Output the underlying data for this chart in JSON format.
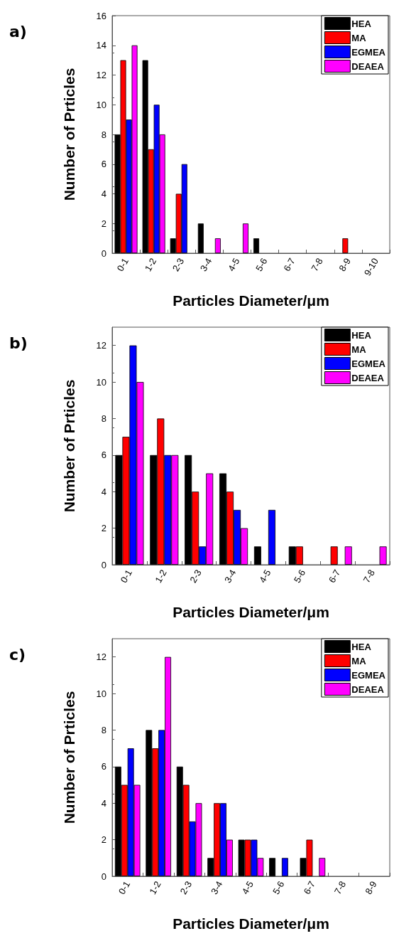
{
  "chart_data": [
    {
      "type": "bar",
      "title": "a)",
      "xlabel": "Particles Diameter/μm",
      "ylabel": "Number of Prticles",
      "categories": [
        "0-1",
        "1-2",
        "2-3",
        "3-4",
        "4-5",
        "5-6",
        "6-7",
        "7-8",
        "8-9",
        "9-10"
      ],
      "ylim": [
        0,
        16
      ],
      "yticks": [
        0,
        2,
        4,
        6,
        8,
        10,
        12,
        14,
        16
      ],
      "grid": false,
      "legend": "top right",
      "series": [
        {
          "name": "HEA",
          "color": "#000000",
          "values": [
            8,
            13,
            1,
            2,
            0,
            1,
            0,
            0,
            0,
            0
          ]
        },
        {
          "name": "MA",
          "color": "#ff0000",
          "values": [
            13,
            7,
            4,
            0,
            0,
            0,
            0,
            0,
            1,
            0
          ]
        },
        {
          "name": "EGMEA",
          "color": "#0000ff",
          "values": [
            9,
            10,
            6,
            0,
            0,
            0,
            0,
            0,
            0,
            0
          ]
        },
        {
          "name": "DEAEA",
          "color": "#ff00ff",
          "values": [
            14,
            8,
            0,
            1,
            2,
            0,
            0,
            0,
            0,
            0
          ]
        }
      ]
    },
    {
      "type": "bar",
      "title": "b)",
      "xlabel": "Particles Diameter/μm",
      "ylabel": "Number of Prticles",
      "categories": [
        "0-1",
        "1-2",
        "2-3",
        "3-4",
        "4-5",
        "5-6",
        "6-7",
        "7-8"
      ],
      "ylim": [
        0,
        13
      ],
      "yticks": [
        0,
        2,
        4,
        6,
        8,
        10,
        12
      ],
      "grid": false,
      "legend": "top right",
      "series": [
        {
          "name": "HEA",
          "color": "#000000",
          "values": [
            6,
            6,
            6,
            5,
            1,
            1,
            0,
            0
          ]
        },
        {
          "name": "MA",
          "color": "#ff0000",
          "values": [
            7,
            8,
            4,
            4,
            0,
            1,
            1,
            0
          ]
        },
        {
          "name": "EGMEA",
          "color": "#0000ff",
          "values": [
            12,
            6,
            1,
            3,
            3,
            0,
            0,
            0
          ]
        },
        {
          "name": "DEAEA",
          "color": "#ff00ff",
          "values": [
            10,
            6,
            5,
            2,
            0,
            0,
            1,
            1
          ]
        }
      ]
    },
    {
      "type": "bar",
      "title": "c)",
      "xlabel": "Particles Diameter/μm",
      "ylabel": "Number of Prticles",
      "categories": [
        "0-1",
        "1-2",
        "2-3",
        "3-4",
        "4-5",
        "5-6",
        "6-7",
        "7-8",
        "8-9"
      ],
      "ylim": [
        0,
        13
      ],
      "yticks": [
        0,
        2,
        4,
        6,
        8,
        10,
        12
      ],
      "grid": false,
      "legend": "top right",
      "series": [
        {
          "name": "HEA",
          "color": "#000000",
          "values": [
            6,
            8,
            6,
            1,
            2,
            1,
            1,
            0,
            0
          ]
        },
        {
          "name": "MA",
          "color": "#ff0000",
          "values": [
            5,
            7,
            5,
            4,
            2,
            0,
            2,
            0,
            0
          ]
        },
        {
          "name": "EGMEA",
          "color": "#0000ff",
          "values": [
            7,
            8,
            3,
            4,
            2,
            1,
            0,
            0,
            0
          ]
        },
        {
          "name": "DEAEA",
          "color": "#ff00ff",
          "values": [
            5,
            12,
            4,
            2,
            1,
            0,
            1,
            0,
            0
          ]
        }
      ]
    }
  ]
}
